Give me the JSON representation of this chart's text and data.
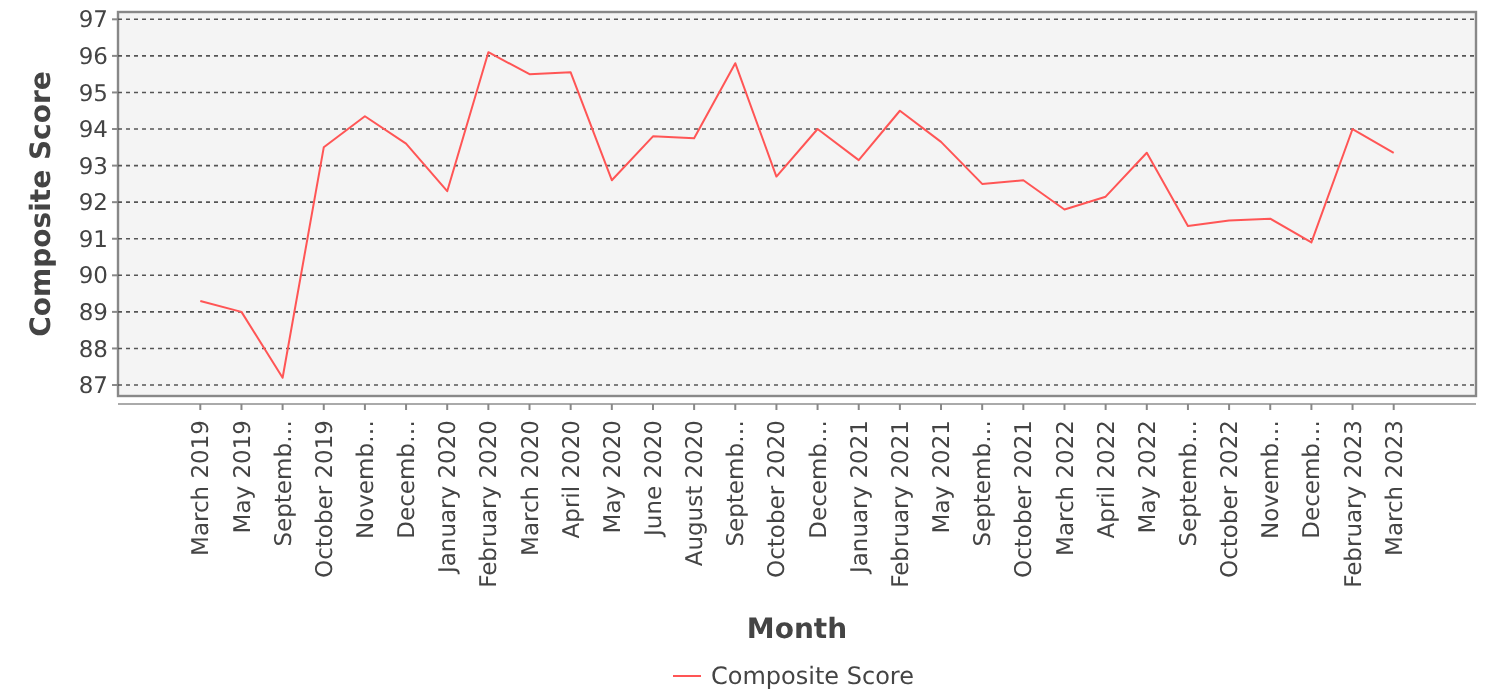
{
  "chart_data": {
    "type": "line",
    "xlabel": "Month",
    "ylabel": "Composite Score",
    "categories": [
      "March 2019",
      "May 2019",
      "Septemb…",
      "October 2019",
      "Novemb…",
      "Decemb…",
      "January 2020",
      "February 2020",
      "March 2020",
      "April 2020",
      "May 2020",
      "June 2020",
      "August 2020",
      "Septemb…",
      "October 2020",
      "Decemb…",
      "January 2021",
      "February 2021",
      "May 2021",
      "Septemb…",
      "October 2021",
      "March 2022",
      "April 2022",
      "May 2022",
      "Septemb…",
      "October 2022",
      "Novemb…",
      "Decemb…",
      "February 2023",
      "March 2023"
    ],
    "series": [
      {
        "name": "Composite Score",
        "color": "#ff5555",
        "values": [
          89.3,
          89.0,
          87.2,
          93.5,
          94.35,
          93.6,
          92.3,
          96.1,
          95.5,
          95.55,
          92.6,
          93.8,
          93.75,
          95.8,
          92.7,
          94.0,
          93.15,
          94.5,
          93.65,
          92.5,
          92.6,
          91.8,
          92.15,
          93.35,
          91.35,
          91.5,
          91.55,
          90.9,
          94.0,
          93.35
        ]
      }
    ],
    "ylim": [
      86.7,
      97.2
    ],
    "yticks": [
      87,
      88,
      89,
      90,
      91,
      92,
      93,
      94,
      95,
      96,
      97
    ],
    "grid": "y",
    "legend": "bottom",
    "marker": "none",
    "line_style": "solid"
  }
}
